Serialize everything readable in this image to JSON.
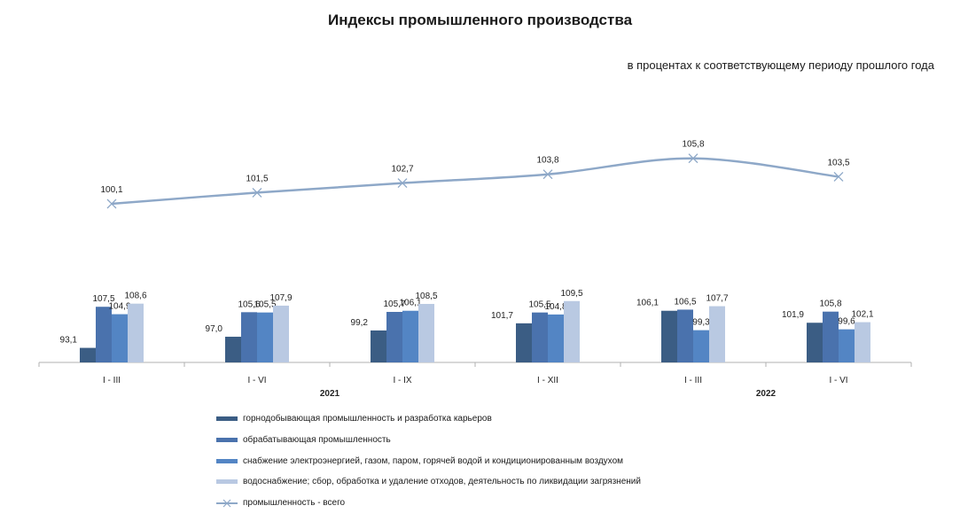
{
  "title": "Индексы промышленного производства",
  "subtitle": "в процентах к соответствующему периоду прошлого года",
  "colors": {
    "mining": "#3b5d84",
    "manufacturing": "#4a72ad",
    "electricity": "#5385c4",
    "water": "#b9c9e2",
    "industry_total": "#8ea8c8",
    "axis": "#b0b0b0"
  },
  "chart_data": {
    "type": "bar",
    "categories": [
      "I - III",
      "I - VI",
      "I - IX",
      "I - XII",
      "I - III",
      "I - VI"
    ],
    "year_labels": [
      "2021",
      "2022"
    ],
    "series": [
      {
        "name": "горнодобывающая промышленность и разработка карьеров",
        "values": [
          93.1,
          97.0,
          99.2,
          101.7,
          106.1,
          101.9
        ],
        "labels": [
          "93,1",
          "97,0",
          "99,2",
          "101,7",
          "106,1",
          "101,9"
        ]
      },
      {
        "name": "обрабатывающая промышленность",
        "values": [
          107.5,
          105.6,
          105.7,
          105.5,
          106.5,
          105.8
        ],
        "labels": [
          "107,5",
          "105,6",
          "105,7",
          "105,5",
          "106,5",
          "105,8"
        ]
      },
      {
        "name": "снабжение электроэнергией, газом, паром, горячей водой и  кондиционированным воздухом",
        "values": [
          104.9,
          105.5,
          106.1,
          104.8,
          99.3,
          99.6
        ],
        "labels": [
          "104,9",
          "105,5",
          "106,1",
          "104,8",
          "99,3",
          "99,6"
        ]
      },
      {
        "name": "водоснабжение; сбор, обработка и удаление отходов, деятельность по ликвидации загрязнений",
        "values": [
          108.6,
          107.9,
          108.5,
          109.5,
          107.7,
          102.1
        ],
        "labels": [
          "108,6",
          "107,9",
          "108,5",
          "109,5",
          "107,7",
          "102,1"
        ]
      }
    ],
    "line_series": {
      "name": "промышленность - всего",
      "values": [
        100.1,
        101.5,
        102.7,
        103.8,
        105.8,
        103.5
      ],
      "labels": [
        "100,1",
        "101,5",
        "102,7",
        "103,8",
        "105,8",
        "103,5"
      ]
    },
    "legend_position": "bottom",
    "grid": false
  }
}
